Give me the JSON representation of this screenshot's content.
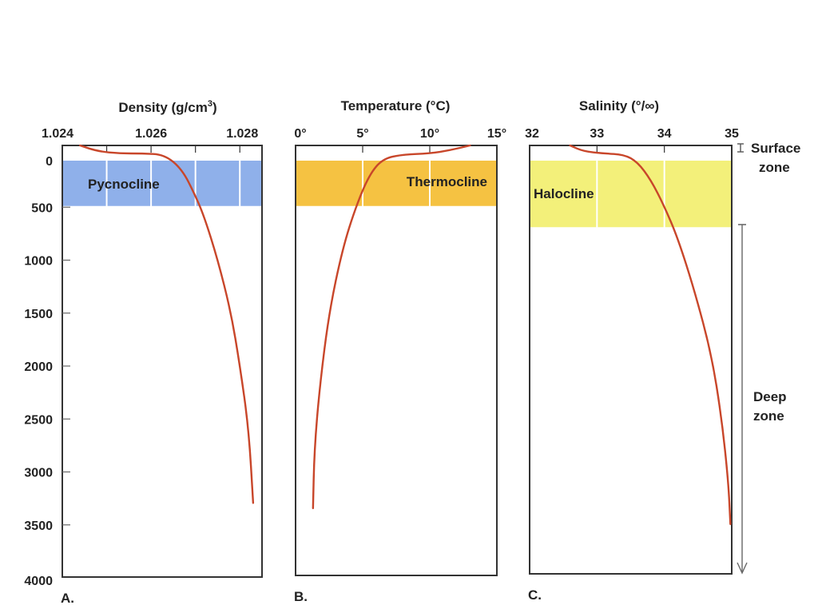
{
  "chart_data": [
    {
      "type": "line",
      "panel_label": "A.",
      "title": "Density (g/cm3)",
      "title_main": "Density (g/cm",
      "title_sup": "3",
      "title_end": ")",
      "xlim": [
        1.024,
        1.0285
      ],
      "x_ticks": [
        1.024,
        1.025,
        1.026,
        1.027,
        1.028
      ],
      "x_tick_labels": [
        "1.024",
        "1.026",
        "1.028"
      ],
      "x_tick_label_values": [
        1.024,
        1.026,
        1.028
      ],
      "ylim": [
        0,
        4000
      ],
      "ylabel": "",
      "y_ticks": [
        0,
        500,
        1000,
        1500,
        2000,
        2500,
        3000,
        3500,
        4000
      ],
      "y_tick_labels": [
        "0",
        "500",
        "1000",
        "1500",
        "2000",
        "2500",
        "3000",
        "3500",
        "4000"
      ],
      "band": {
        "label": "Pycnocline",
        "depth_range": [
          0,
          500
        ],
        "color": "#8fb0ea"
      },
      "series": [
        {
          "name": "density",
          "x": [
            1.0244,
            1.0248,
            1.0253,
            1.0258,
            1.0263,
            1.0267,
            1.027,
            1.0272,
            1.0275,
            1.0278,
            1.028,
            1.0282,
            1.0283
          ],
          "y": [
            -80,
            -20,
            0,
            0,
            10,
            150,
            400,
            600,
            1000,
            1500,
            2000,
            2600,
            3300
          ]
        }
      ]
    },
    {
      "type": "line",
      "panel_label": "B.",
      "title": "Temperature (°C)",
      "xlim": [
        0,
        15
      ],
      "x_ticks": [
        0,
        5,
        10,
        15
      ],
      "x_tick_labels": [
        "0°",
        "5°",
        "10°",
        "15°"
      ],
      "x_tick_label_values": [
        0,
        5,
        10,
        15
      ],
      "ylim": [
        0,
        4000
      ],
      "band": {
        "label": "Thermocline",
        "depth_range": [
          0,
          500
        ],
        "color": "#f5c242"
      },
      "series": [
        {
          "name": "temperature",
          "x": [
            13.0,
            11.5,
            10.0,
            8.0,
            6.5,
            5.5,
            4.5,
            3.5,
            2.5,
            1.8,
            1.4,
            1.3
          ],
          "y": [
            -80,
            -30,
            0,
            10,
            50,
            200,
            500,
            900,
            1500,
            2200,
            2800,
            3350
          ]
        }
      ]
    },
    {
      "type": "line",
      "panel_label": "C.",
      "title": "Salinity (°/∞)",
      "xlim": [
        32,
        35
      ],
      "x_ticks": [
        32,
        33,
        34,
        35
      ],
      "x_tick_labels": [
        "32",
        "33",
        "34",
        "35"
      ],
      "x_tick_label_values": [
        32,
        33,
        34,
        35
      ],
      "ylim": [
        0,
        4000
      ],
      "band": {
        "label": "Halocline",
        "depth_range": [
          0,
          700
        ],
        "color": "#f3f07a"
      },
      "series": [
        {
          "name": "salinity",
          "x": [
            32.6,
            32.8,
            33.1,
            33.4,
            33.6,
            33.8,
            34.0,
            34.2,
            34.45,
            34.7,
            34.85,
            34.95,
            34.98
          ],
          "y": [
            -80,
            -20,
            0,
            10,
            80,
            250,
            500,
            800,
            1300,
            1900,
            2500,
            3100,
            3500
          ]
        }
      ]
    }
  ],
  "zones": {
    "surface": {
      "label_line1": "Surface",
      "label_line2": "zone"
    },
    "deep": {
      "label_line1": "Deep",
      "label_line2": "zone"
    }
  },
  "colors": {
    "curve": "#c8462a",
    "frame": "#333333",
    "grid": "#ffffff",
    "text": "#222222"
  }
}
